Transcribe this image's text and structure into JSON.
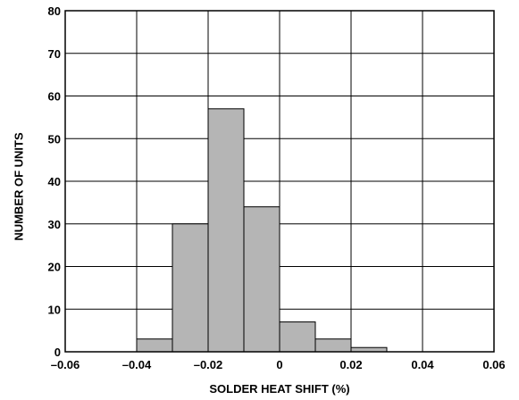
{
  "chart_data": {
    "type": "bar",
    "subtype": "histogram",
    "title": "",
    "xlabel": "SOLDER HEAT SHIFT (%)",
    "ylabel": "NUMBER OF UNITS",
    "xlim": [
      -0.06,
      0.06
    ],
    "ylim": [
      0,
      80
    ],
    "grid": true,
    "bin_width": 0.01,
    "bins": [
      {
        "start": -0.04,
        "end": -0.03,
        "value": 3
      },
      {
        "start": -0.03,
        "end": -0.02,
        "value": 30
      },
      {
        "start": -0.02,
        "end": -0.01,
        "value": 57
      },
      {
        "start": -0.01,
        "end": 0.0,
        "value": 34
      },
      {
        "start": 0.0,
        "end": 0.01,
        "value": 7
      },
      {
        "start": 0.01,
        "end": 0.02,
        "value": 3
      },
      {
        "start": 0.02,
        "end": 0.03,
        "value": 1
      }
    ],
    "x_ticks": [
      {
        "value": -0.06,
        "label": "–0.06"
      },
      {
        "value": -0.04,
        "label": "–0.04"
      },
      {
        "value": -0.02,
        "label": "–0.02"
      },
      {
        "value": 0,
        "label": "0"
      },
      {
        "value": 0.02,
        "label": "0.02"
      },
      {
        "value": 0.04,
        "label": "0.04"
      },
      {
        "value": 0.06,
        "label": "0.06"
      }
    ],
    "y_ticks": [
      {
        "value": 0,
        "label": "0"
      },
      {
        "value": 10,
        "label": "10"
      },
      {
        "value": 20,
        "label": "20"
      },
      {
        "value": 30,
        "label": "30"
      },
      {
        "value": 40,
        "label": "40"
      },
      {
        "value": 50,
        "label": "50"
      },
      {
        "value": 60,
        "label": "60"
      },
      {
        "value": 70,
        "label": "70"
      },
      {
        "value": 80,
        "label": "80"
      }
    ],
    "colors": {
      "bar_fill": "#b5b5b5",
      "bar_stroke": "#000000",
      "grid": "#000000",
      "frame": "#000000"
    }
  }
}
